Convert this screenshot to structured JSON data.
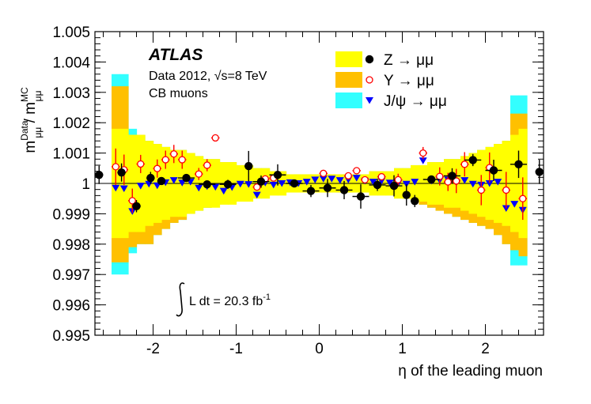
{
  "chart_data": {
    "type": "scatter",
    "experiment": "ATLAS",
    "info_lines": [
      "Data 2012,  √s=8 TeV",
      "CB muons"
    ],
    "lumi": {
      "prefix": "L dt = 20.3 fb",
      "sup": "-1"
    },
    "xlabel": "η of the leading muon",
    "ylabel": {
      "m1": "m",
      "sup1": "Data",
      "sub1": "μμ",
      "slash": " / ",
      "m2": "m",
      "sup2": "MC",
      "sub2": "μμ"
    },
    "xlim": [
      -2.7,
      2.7
    ],
    "ylim": [
      0.995,
      1.005
    ],
    "x_ticks": [
      -2,
      -1,
      0,
      1,
      2
    ],
    "x_tick_labels": [
      "-2",
      "-1",
      "0",
      "1",
      "2"
    ],
    "y_ticks": [
      0.995,
      0.996,
      0.997,
      0.998,
      0.999,
      1.0,
      1.001,
      1.002,
      1.003,
      1.004,
      1.005
    ],
    "y_tick_labels": [
      "0.995",
      "0.996",
      "0.997",
      "0.998",
      "0.999",
      "1",
      "1.001",
      "1.002",
      "1.003",
      "1.004",
      "1.005"
    ],
    "reference_line": 1.0,
    "colors": {
      "band_z": "#ffff00",
      "band_upsilon": "#ffc000",
      "band_jpsi": "#33ffff",
      "z": "#000000",
      "upsilon": "#ff0000",
      "jpsi": "#0000ff"
    },
    "legend": [
      {
        "label": "Z → μμ",
        "marker": "filled-circle",
        "color": "#000000",
        "band_color": "#ffff00"
      },
      {
        "label": "Υ  → μμ",
        "marker": "open-circle",
        "color": "#ff0000",
        "band_color": "#ffc000"
      },
      {
        "label": "J/ψ → μμ",
        "marker": "down-triangle",
        "color": "#0000ff",
        "band_color": "#33ffff"
      }
    ],
    "bands": {
      "eta_edges": [
        -2.5,
        -2.4,
        -2.3,
        -2.2,
        -2.1,
        -2.0,
        -1.9,
        -1.8,
        -1.7,
        -1.6,
        -1.5,
        -1.4,
        -1.3,
        -1.2,
        -1.1,
        -1.0,
        -0.9,
        -0.8,
        -0.7,
        -0.6,
        -0.5,
        -0.4,
        -0.3,
        -0.2,
        -0.1,
        0.0,
        0.1,
        0.2,
        0.3,
        0.4,
        0.5,
        0.6,
        0.7,
        0.8,
        0.9,
        1.0,
        1.1,
        1.2,
        1.3,
        1.4,
        1.5,
        1.6,
        1.7,
        1.8,
        1.9,
        2.0,
        2.1,
        2.2,
        2.3,
        2.4,
        2.5
      ],
      "yellow_halfwidth": [
        0.0018,
        0.0018,
        0.0016,
        0.0016,
        0.0014,
        0.0013,
        0.0012,
        0.0011,
        0.0011,
        0.001,
        0.0009,
        0.0008,
        0.0008,
        0.0007,
        0.0007,
        0.0006,
        0.0006,
        0.0005,
        0.0005,
        0.0004,
        0.0004,
        0.0003,
        0.0003,
        0.0003,
        0.0003,
        0.0003,
        0.0003,
        0.0003,
        0.0003,
        0.0003,
        0.0003,
        0.0004,
        0.0004,
        0.0004,
        0.0005,
        0.0005,
        0.0006,
        0.0006,
        0.0007,
        0.0007,
        0.0008,
        0.0008,
        0.0009,
        0.001,
        0.0011,
        0.0012,
        0.0013,
        0.0014,
        0.0016,
        0.0018
      ],
      "orange_upper": [
        1.0032,
        1.0032,
        1.0016,
        1.0016,
        1.0014,
        1.0013,
        1.0012,
        1.0011,
        1.0011,
        1.001,
        1.0009,
        1.0008,
        1.0008,
        1.0007,
        1.0007,
        1.0006,
        1.0006,
        1.0005,
        1.0005,
        1.0004,
        1.0004,
        1.0003,
        1.0003,
        1.0003,
        1.0003,
        1.0003,
        1.0003,
        1.0003,
        1.0003,
        1.0003,
        1.0003,
        1.0004,
        1.0004,
        1.0004,
        1.0005,
        1.0005,
        1.0006,
        1.0006,
        1.0007,
        1.0007,
        1.0008,
        1.0008,
        1.0009,
        1.001,
        1.0011,
        1.0012,
        1.0013,
        1.0014,
        1.0023,
        1.0023
      ],
      "orange_lower": [
        0.9974,
        0.9974,
        0.9979,
        0.998,
        0.998,
        0.9983,
        0.9985,
        0.9987,
        0.9988,
        0.999,
        0.9991,
        0.9992,
        0.9993,
        0.9994,
        0.9995,
        0.9996,
        0.9996,
        0.9997,
        0.9997,
        0.9998,
        0.9998,
        0.9998,
        0.9998,
        0.9998,
        0.9998,
        0.9998,
        0.9998,
        0.9998,
        0.9998,
        0.9998,
        0.9998,
        0.9998,
        0.9997,
        0.9997,
        0.9996,
        0.9995,
        0.9994,
        0.9993,
        0.9992,
        0.9991,
        0.999,
        0.9989,
        0.9988,
        0.9987,
        0.9986,
        0.9985,
        0.9983,
        0.998,
        0.9978,
        0.9976
      ],
      "cyan_upper": [
        1.0036,
        1.0036,
        1.0018,
        1.0016,
        1.0014,
        1.0013,
        1.0012,
        1.0011,
        1.0011,
        1.001,
        1.0009,
        1.0008,
        1.0008,
        1.0007,
        1.0007,
        1.0006,
        1.0006,
        1.0005,
        1.0005,
        1.0004,
        1.0004,
        1.0003,
        1.0003,
        1.0003,
        1.0003,
        1.0003,
        1.0003,
        1.0003,
        1.0003,
        1.0003,
        1.0003,
        1.0004,
        1.0004,
        1.0004,
        1.0005,
        1.0005,
        1.0006,
        1.0006,
        1.0007,
        1.0007,
        1.0008,
        1.0008,
        1.0009,
        1.001,
        1.0011,
        1.0012,
        1.0013,
        1.0014,
        1.0029,
        1.0029
      ],
      "cyan_lower": [
        0.997,
        0.997,
        0.9977,
        0.998,
        0.998,
        0.9983,
        0.9985,
        0.9987,
        0.9988,
        0.999,
        0.9991,
        0.9992,
        0.9993,
        0.9994,
        0.9995,
        0.9996,
        0.9996,
        0.9997,
        0.9997,
        0.9998,
        0.9998,
        0.9998,
        0.9998,
        0.9998,
        0.9998,
        0.9998,
        0.9998,
        0.9998,
        0.9998,
        0.9998,
        0.9998,
        0.9998,
        0.9997,
        0.9997,
        0.9996,
        0.9995,
        0.9994,
        0.9993,
        0.9992,
        0.9991,
        0.999,
        0.9989,
        0.9988,
        0.9987,
        0.9986,
        0.9985,
        0.9983,
        0.998,
        0.9973,
        0.9973
      ]
    },
    "series": [
      {
        "name": "Z → μμ",
        "marker": "filled-circle",
        "color": "#000000",
        "points": [
          {
            "x": -2.65,
            "y": 1.00028,
            "xerr": 0.05,
            "yerr": 0.0003
          },
          {
            "x": -2.38,
            "y": 1.00036,
            "xerr": 0.05,
            "yerr": 0.0003
          },
          {
            "x": -2.2,
            "y": 0.99925,
            "xerr": 0.05,
            "yerr": 0.0002
          },
          {
            "x": -2.03,
            "y": 1.00018,
            "xerr": 0.05,
            "yerr": 0.0002
          },
          {
            "x": -1.9,
            "y": 1.00008,
            "xerr": 0.05,
            "yerr": 0.0001
          },
          {
            "x": -1.6,
            "y": 1.00018,
            "xerr": 0.1,
            "yerr": 0.0001
          },
          {
            "x": -1.35,
            "y": 0.99997,
            "xerr": 0.1,
            "yerr": 0.0001
          },
          {
            "x": -1.1,
            "y": 0.99997,
            "xerr": 0.1,
            "yerr": 0.00015
          },
          {
            "x": -0.85,
            "y": 1.00057,
            "xerr": 0.05,
            "yerr": 0.0005
          },
          {
            "x": -0.7,
            "y": 1.00006,
            "xerr": 0.1,
            "yerr": 0.0002
          },
          {
            "x": -0.5,
            "y": 1.00028,
            "xerr": 0.1,
            "yerr": 0.00035
          },
          {
            "x": -0.3,
            "y": 1.0,
            "xerr": 0.1,
            "yerr": 0.0001
          },
          {
            "x": -0.1,
            "y": 0.99975,
            "xerr": 0.1,
            "yerr": 0.0002
          },
          {
            "x": 0.1,
            "y": 0.99985,
            "xerr": 0.1,
            "yerr": 0.0003
          },
          {
            "x": 0.3,
            "y": 0.99978,
            "xerr": 0.1,
            "yerr": 0.0003
          },
          {
            "x": 0.5,
            "y": 0.99957,
            "xerr": 0.1,
            "yerr": 0.0004
          },
          {
            "x": 0.7,
            "y": 0.99995,
            "xerr": 0.1,
            "yerr": 0.0002
          },
          {
            "x": 0.9,
            "y": 0.99992,
            "xerr": 0.1,
            "yerr": 0.00035
          },
          {
            "x": 1.05,
            "y": 0.99962,
            "xerr": 0.05,
            "yerr": 0.00035
          },
          {
            "x": 1.15,
            "y": 0.99942,
            "xerr": 0.05,
            "yerr": 0.0002
          },
          {
            "x": 1.35,
            "y": 1.00013,
            "xerr": 0.1,
            "yerr": 0.0001
          },
          {
            "x": 1.6,
            "y": 1.00025,
            "xerr": 0.1,
            "yerr": 0.00025
          },
          {
            "x": 1.85,
            "y": 1.00077,
            "xerr": 0.1,
            "yerr": 0.0002
          },
          {
            "x": 2.1,
            "y": 1.00043,
            "xerr": 0.1,
            "yerr": 0.00035
          },
          {
            "x": 2.4,
            "y": 1.00063,
            "xerr": 0.1,
            "yerr": 0.00045
          },
          {
            "x": 2.65,
            "y": 1.00038,
            "xerr": 0.05,
            "yerr": 0.0004
          }
        ]
      },
      {
        "name": "Υ  → μμ",
        "marker": "open-circle",
        "color": "#ff0000",
        "points": [
          {
            "x": -2.45,
            "y": 1.00055,
            "xerr": 0.05,
            "yerr": 0.0006
          },
          {
            "x": -2.35,
            "y": 1.00045,
            "xerr": 0.05,
            "yerr": 0.0005
          },
          {
            "x": -2.25,
            "y": 0.99943,
            "xerr": 0.05,
            "yerr": 0.0004
          },
          {
            "x": -2.15,
            "y": 1.00064,
            "xerr": 0.05,
            "yerr": 0.0003
          },
          {
            "x": -1.95,
            "y": 1.00049,
            "xerr": 0.05,
            "yerr": 0.0003
          },
          {
            "x": -1.85,
            "y": 1.00078,
            "xerr": 0.05,
            "yerr": 0.0003
          },
          {
            "x": -1.75,
            "y": 1.00097,
            "xerr": 0.05,
            "yerr": 0.0003
          },
          {
            "x": -1.65,
            "y": 1.00078,
            "xerr": 0.05,
            "yerr": 0.0003
          },
          {
            "x": -1.45,
            "y": 1.00031,
            "xerr": 0.05,
            "yerr": 0.0002
          },
          {
            "x": -1.35,
            "y": 1.0006,
            "xerr": 0.05,
            "yerr": 0.0002
          },
          {
            "x": -1.25,
            "y": 1.0015,
            "xerr": 0.05,
            "yerr": 0.0001
          },
          {
            "x": -0.75,
            "y": 0.99988,
            "xerr": 0.05,
            "yerr": 0.0001
          },
          {
            "x": -0.65,
            "y": 1.00015,
            "xerr": 0.05,
            "yerr": 0.0001
          },
          {
            "x": -0.55,
            "y": 1.00018,
            "xerr": 0.05,
            "yerr": 0.0001
          },
          {
            "x": 0.05,
            "y": 1.00033,
            "xerr": 0.05,
            "yerr": 0.0001
          },
          {
            "x": 0.35,
            "y": 1.00025,
            "xerr": 0.05,
            "yerr": 0.0001
          },
          {
            "x": 0.45,
            "y": 1.00042,
            "xerr": 0.05,
            "yerr": 0.0001
          },
          {
            "x": 0.55,
            "y": 1.00012,
            "xerr": 0.05,
            "yerr": 0.0001
          },
          {
            "x": 0.75,
            "y": 1.00022,
            "xerr": 0.05,
            "yerr": 0.0001
          },
          {
            "x": 0.95,
            "y": 1.00012,
            "xerr": 0.05,
            "yerr": 0.0002
          },
          {
            "x": 1.25,
            "y": 1.001,
            "xerr": 0.05,
            "yerr": 0.0002
          },
          {
            "x": 1.45,
            "y": 1.00023,
            "xerr": 0.05,
            "yerr": 0.0003
          },
          {
            "x": 1.55,
            "y": 1.00005,
            "xerr": 0.05,
            "yerr": 0.0003
          },
          {
            "x": 1.65,
            "y": 1.00008,
            "xerr": 0.05,
            "yerr": 0.0004
          },
          {
            "x": 1.75,
            "y": 1.00063,
            "xerr": 0.05,
            "yerr": 0.0004
          },
          {
            "x": 1.95,
            "y": 0.99978,
            "xerr": 0.05,
            "yerr": 0.0005
          },
          {
            "x": 2.05,
            "y": 1.00052,
            "xerr": 0.05,
            "yerr": 0.0005
          },
          {
            "x": 2.25,
            "y": 0.99978,
            "xerr": 0.05,
            "yerr": 0.0006
          },
          {
            "x": 2.45,
            "y": 0.9995,
            "xerr": 0.05,
            "yerr": 0.0007
          }
        ]
      },
      {
        "name": "J/ψ → μμ",
        "marker": "down-triangle",
        "color": "#0000ff",
        "points": [
          {
            "x": -2.45,
            "y": 0.99985
          },
          {
            "x": -2.35,
            "y": 0.99983
          },
          {
            "x": -2.25,
            "y": 0.99908
          },
          {
            "x": -2.15,
            "y": 0.99992
          },
          {
            "x": -2.05,
            "y": 0.99998
          },
          {
            "x": -1.95,
            "y": 0.99993
          },
          {
            "x": -1.85,
            "y": 1.00003
          },
          {
            "x": -1.75,
            "y": 1.0001
          },
          {
            "x": -1.65,
            "y": 1.00002
          },
          {
            "x": -1.55,
            "y": 1.00005
          },
          {
            "x": -1.45,
            "y": 0.99985
          },
          {
            "x": -1.35,
            "y": 0.9999
          },
          {
            "x": -1.25,
            "y": 0.99988
          },
          {
            "x": -1.15,
            "y": 0.99975
          },
          {
            "x": -1.05,
            "y": 0.99987
          },
          {
            "x": -0.95,
            "y": 0.99998
          },
          {
            "x": -0.85,
            "y": 0.99997
          },
          {
            "x": -0.75,
            "y": 0.99962
          },
          {
            "x": -0.65,
            "y": 1.00002
          },
          {
            "x": -0.55,
            "y": 0.99995
          },
          {
            "x": -0.45,
            "y": 1.0
          },
          {
            "x": -0.35,
            "y": 1.00003
          },
          {
            "x": -0.25,
            "y": 1.0
          },
          {
            "x": -0.15,
            "y": 1.00005
          },
          {
            "x": -0.05,
            "y": 1.00012
          },
          {
            "x": 0.05,
            "y": 1.00015
          },
          {
            "x": 0.15,
            "y": 1.00015
          },
          {
            "x": 0.25,
            "y": 1.0001
          },
          {
            "x": 0.35,
            "y": 1.00012
          },
          {
            "x": 0.45,
            "y": 1.00018
          },
          {
            "x": 0.55,
            "y": 1.00008
          },
          {
            "x": 0.65,
            "y": 1.00005
          },
          {
            "x": 0.75,
            "y": 1.00008
          },
          {
            "x": 0.85,
            "y": 1.00002
          },
          {
            "x": 0.95,
            "y": 1.0
          },
          {
            "x": 1.05,
            "y": 0.99998
          },
          {
            "x": 1.15,
            "y": 1.00005
          },
          {
            "x": 1.25,
            "y": 1.00075
          },
          {
            "x": 1.35,
            "y": 1.00008
          },
          {
            "x": 1.45,
            "y": 1.0001
          },
          {
            "x": 1.55,
            "y": 1.00012
          },
          {
            "x": 1.65,
            "y": 1.00003
          },
          {
            "x": 1.75,
            "y": 1.0001
          },
          {
            "x": 1.85,
            "y": 0.99998
          },
          {
            "x": 1.95,
            "y": 0.99995
          },
          {
            "x": 2.05,
            "y": 1.0
          },
          {
            "x": 2.15,
            "y": 1.00005
          },
          {
            "x": 2.25,
            "y": 0.99918
          },
          {
            "x": 2.35,
            "y": 0.99932
          },
          {
            "x": 2.45,
            "y": 0.99912
          }
        ]
      }
    ]
  }
}
